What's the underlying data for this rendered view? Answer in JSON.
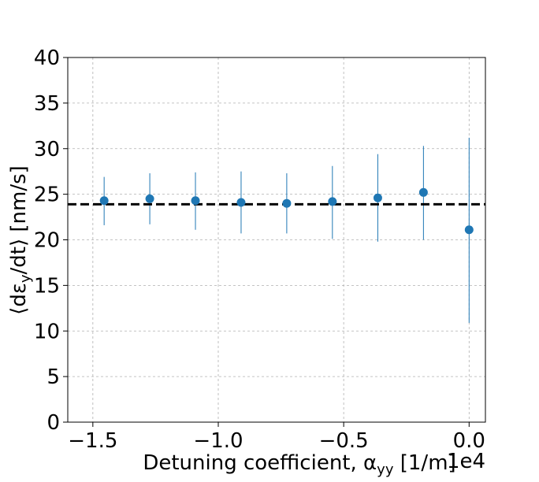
{
  "chart_data": {
    "type": "scatter",
    "title": "",
    "xlabel": "Detuning coefficient, α",
    "xlabel_sub": "yy",
    "xlabel_unit": " [1/m]",
    "ylabel": "⟨dε",
    "ylabel_sub": "y",
    "ylabel_tail": "/dt⟩ [nm/s]",
    "x_offset_text": "1e4",
    "xlim": [
      -1.6,
      0.065
    ],
    "ylim": [
      0,
      40
    ],
    "x_ticks": [
      -1.5,
      -1.0,
      -0.5,
      0.0
    ],
    "x_tick_labels": [
      "−1.5",
      "−1.0",
      "−0.5",
      "0.0"
    ],
    "y_ticks": [
      0,
      5,
      10,
      15,
      20,
      25,
      30,
      35,
      40
    ],
    "y_tick_labels": [
      "0",
      "5",
      "10",
      "15",
      "20",
      "25",
      "30",
      "35",
      "40"
    ],
    "grid": true,
    "reference_line": {
      "y": 23.9,
      "style": "dashed",
      "color": "#000000"
    },
    "series": [
      {
        "color": "#1f77b4",
        "x": [
          -1.455,
          -1.273,
          -1.091,
          -0.909,
          -0.727,
          -0.545,
          -0.364,
          -0.182,
          0.0
        ],
        "y": [
          24.3,
          24.5,
          24.3,
          24.1,
          24.0,
          24.2,
          24.6,
          25.2,
          21.1
        ],
        "err_low": [
          21.6,
          21.7,
          21.1,
          20.7,
          20.7,
          20.1,
          19.8,
          20.0,
          10.9
        ],
        "err_high": [
          26.9,
          27.3,
          27.4,
          27.5,
          27.3,
          28.1,
          29.4,
          30.3,
          31.2
        ]
      }
    ]
  }
}
